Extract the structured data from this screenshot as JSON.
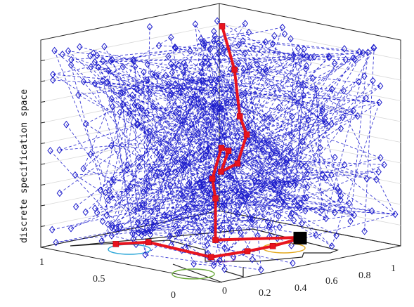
{
  "chart_data": {
    "type": "scatter",
    "projection": "3d",
    "title": "",
    "xlabel": "",
    "ylabel": "discrete specification space",
    "zlabel": "",
    "x_ticks": [
      "0",
      "0.2",
      "0.4",
      "0.6",
      "0.8",
      "1"
    ],
    "y_ticks": [
      "0",
      "0.5",
      "1"
    ],
    "x_range": [
      0,
      1
    ],
    "y_range": [
      0,
      1
    ],
    "z_range": [
      0,
      10
    ],
    "z_levels": 10,
    "grid": true,
    "legend": "none",
    "colors": {
      "tree": "#1a1acc",
      "solution_path": "#e8141e",
      "goal": "#000000",
      "region_1": "#2aa6d8",
      "region_2": "#e3a81e",
      "region_3": "#6aa83a",
      "region_4": "#a05ac8"
    },
    "solution_path": [
      {
        "x": 0.02,
        "y": 0.6,
        "z": 0.8
      },
      {
        "x": 0.22,
        "y": 0.62,
        "z": 0.5
      },
      {
        "x": 0.3,
        "y": 0.35,
        "z": 0.1
      },
      {
        "x": 0.48,
        "y": 0.33,
        "z": 0.1
      },
      {
        "x": 0.62,
        "y": 0.33,
        "z": 0.1
      },
      {
        "x": 0.8,
        "y": 0.36,
        "z": 0.1
      },
      {
        "x": 0.78,
        "y": 0.35,
        "z": 0.2
      },
      {
        "x": 0.52,
        "y": 0.55,
        "z": 0.2
      },
      {
        "x": 0.55,
        "y": 0.58,
        "z": 2.1
      },
      {
        "x": 0.7,
        "y": 0.75,
        "z": 2.5
      },
      {
        "x": 0.75,
        "y": 0.75,
        "z": 3.9
      },
      {
        "x": 0.7,
        "y": 0.66,
        "z": 4.0
      },
      {
        "x": 0.62,
        "y": 0.62,
        "z": 3.2
      },
      {
        "x": 0.75,
        "y": 0.66,
        "z": 3.3
      },
      {
        "x": 0.86,
        "y": 0.72,
        "z": 4.4
      },
      {
        "x": 0.95,
        "y": 0.85,
        "z": 4.9
      },
      {
        "x": 0.95,
        "y": 0.88,
        "z": 7.1
      },
      {
        "x": 1.0,
        "y": 1.0,
        "z": 8.9
      }
    ],
    "goal_point": {
      "x": 0.8,
      "y": 0.36,
      "z": 0.1
    },
    "tree_nodes_approx": 480,
    "floor_regions": 4
  }
}
